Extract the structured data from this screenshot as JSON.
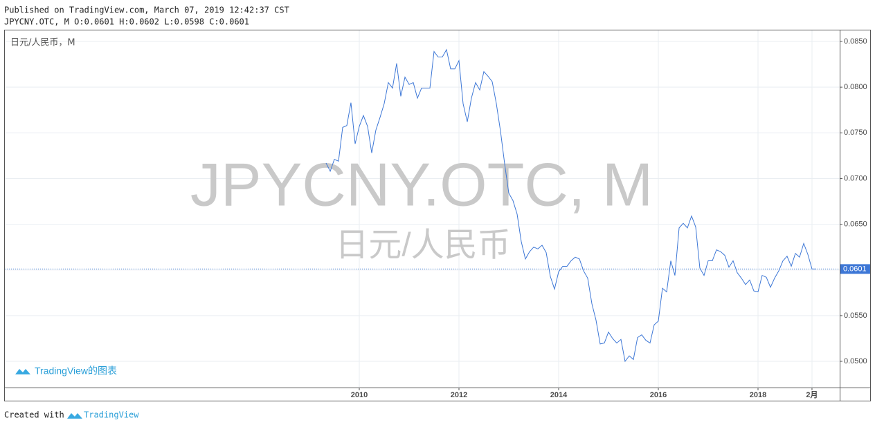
{
  "header": {
    "published": "Published on TradingView.com, March 07, 2019 12:42:37 CST",
    "quote": "JPYCNY.OTC, M O:0.0601 H:0.0602 L:0.0598 C:0.0601"
  },
  "chart_data": {
    "type": "line",
    "legend_text": "日元/人民币，M",
    "watermark": "JPYCNY.OTC, M",
    "watermark_subtitle": "日元/人民币",
    "logo_text": "TradingView的图表",
    "x": [
      2009.333,
      2009.417,
      2009.5,
      2009.583,
      2009.667,
      2009.75,
      2009.833,
      2009.917,
      2010,
      2010.083,
      2010.167,
      2010.25,
      2010.333,
      2010.417,
      2010.5,
      2010.583,
      2010.667,
      2010.75,
      2010.833,
      2010.917,
      2011,
      2011.083,
      2011.167,
      2011.25,
      2011.333,
      2011.417,
      2011.5,
      2011.583,
      2011.667,
      2011.75,
      2011.833,
      2011.917,
      2012,
      2012.083,
      2012.167,
      2012.25,
      2012.333,
      2012.417,
      2012.5,
      2012.583,
      2012.667,
      2012.75,
      2012.833,
      2012.917,
      2013,
      2013.083,
      2013.167,
      2013.25,
      2013.333,
      2013.417,
      2013.5,
      2013.583,
      2013.667,
      2013.75,
      2013.833,
      2013.917,
      2014,
      2014.083,
      2014.167,
      2014.25,
      2014.333,
      2014.417,
      2014.5,
      2014.583,
      2014.667,
      2014.75,
      2014.833,
      2014.917,
      2015,
      2015.083,
      2015.167,
      2015.25,
      2015.333,
      2015.417,
      2015.5,
      2015.583,
      2015.667,
      2015.75,
      2015.833,
      2015.917,
      2016,
      2016.083,
      2016.167,
      2016.25,
      2016.333,
      2016.417,
      2016.5,
      2016.583,
      2016.667,
      2016.75,
      2016.833,
      2016.917,
      2017,
      2017.083,
      2017.167,
      2017.25,
      2017.333,
      2017.417,
      2017.5,
      2017.583,
      2017.667,
      2017.75,
      2017.833,
      2017.917,
      2018,
      2018.083,
      2018.167,
      2018.25,
      2018.333,
      2018.417,
      2018.5,
      2018.583,
      2018.667,
      2018.75,
      2018.833,
      2018.917,
      2019,
      2019.083,
      2019.167
    ],
    "series": [
      {
        "color": "#3d77d6",
        "values": [
          0.0717,
          0.0708,
          0.0721,
          0.0719,
          0.0756,
          0.0758,
          0.0783,
          0.0738,
          0.0757,
          0.0769,
          0.0757,
          0.0728,
          0.0753,
          0.0767,
          0.0782,
          0.0805,
          0.0799,
          0.0826,
          0.079,
          0.0811,
          0.0803,
          0.0805,
          0.0788,
          0.0799,
          0.0799,
          0.0799,
          0.0839,
          0.0833,
          0.0833,
          0.0841,
          0.082,
          0.082,
          0.0829,
          0.0782,
          0.0762,
          0.0788,
          0.0805,
          0.0797,
          0.0817,
          0.0812,
          0.0806,
          0.0782,
          0.0752,
          0.0716,
          0.0684,
          0.0676,
          0.0661,
          0.0631,
          0.0612,
          0.062,
          0.0625,
          0.0623,
          0.0627,
          0.0619,
          0.0593,
          0.0579,
          0.0598,
          0.0604,
          0.0604,
          0.061,
          0.0614,
          0.0612,
          0.0599,
          0.0591,
          0.0563,
          0.0545,
          0.0519,
          0.052,
          0.0532,
          0.0525,
          0.052,
          0.0524,
          0.05,
          0.0506,
          0.0502,
          0.0526,
          0.0529,
          0.0523,
          0.052,
          0.054,
          0.0544,
          0.058,
          0.0576,
          0.061,
          0.0594,
          0.0646,
          0.0651,
          0.0646,
          0.0659,
          0.0647,
          0.0602,
          0.0594,
          0.061,
          0.061,
          0.0622,
          0.062,
          0.0616,
          0.0603,
          0.061,
          0.0597,
          0.0591,
          0.0584,
          0.0589,
          0.0577,
          0.0576,
          0.0594,
          0.0592,
          0.0581,
          0.0591,
          0.0599,
          0.061,
          0.0615,
          0.0604,
          0.0618,
          0.0614,
          0.0629,
          0.0617,
          0.0601,
          0.0601
        ]
      }
    ],
    "last_value": {
      "value": 0.0601,
      "label": "0.0601"
    },
    "xlim": [
      2002.889,
      2019.639
    ],
    "xticks": [
      2010,
      2012,
      2014,
      2016,
      2018,
      {
        "value": 2019.083,
        "label": "2月"
      }
    ],
    "ylim": [
      0.04713,
      0.08621
    ],
    "yticks": [
      {
        "value": 0.05,
        "label": "0.0500"
      },
      {
        "value": 0.055,
        "label": "0.0550"
      },
      {
        "value": 0.06,
        "label": "0.0600"
      },
      {
        "value": 0.065,
        "label": "0.0650"
      },
      {
        "value": 0.07,
        "label": "0.0700"
      },
      {
        "value": 0.075,
        "label": "0.0750"
      },
      {
        "value": 0.08,
        "label": "0.0800"
      },
      {
        "value": 0.085,
        "label": "0.0850"
      }
    ],
    "grid": true
  },
  "footer": {
    "created": "Created with",
    "brand": "TradingView"
  }
}
